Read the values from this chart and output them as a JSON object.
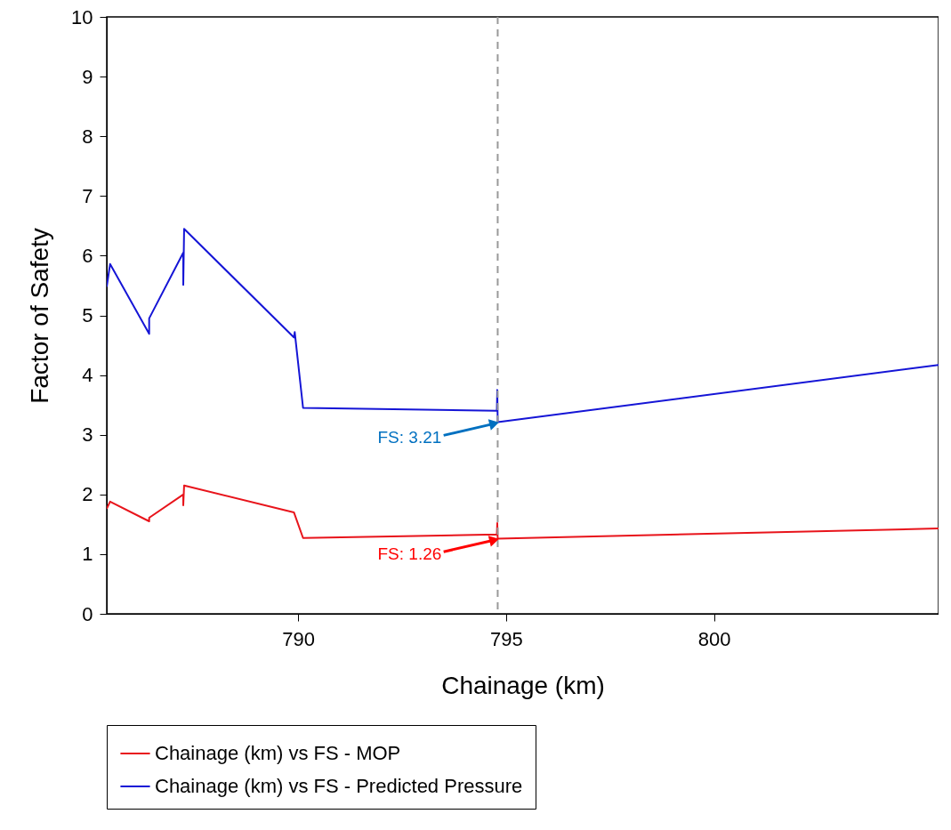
{
  "chart_data": {
    "type": "line",
    "xlabel": "Chainage (km)",
    "ylabel": "Factor of Safety",
    "xlim": [
      785.4,
      805.4
    ],
    "ylim": [
      0,
      10
    ],
    "xticks": [
      790,
      795,
      800
    ],
    "yticks": [
      0,
      1,
      2,
      3,
      4,
      5,
      6,
      7,
      8,
      9,
      10
    ],
    "grid": false,
    "legend": "bottom",
    "marker": "none",
    "line_style": "solid",
    "series": [
      {
        "name": "Chainage (km) vs FS - MOP",
        "color": "#e8141b",
        "x": [
          785.4,
          785.48,
          786.42,
          786.42,
          787.24,
          787.24,
          787.26,
          789.9,
          790.12,
          794.78,
          794.79,
          794.8,
          805.4
        ],
        "values": [
          1.76,
          1.88,
          1.55,
          1.61,
          2.0,
          1.82,
          2.15,
          1.7,
          1.27,
          1.33,
          1.52,
          1.26,
          1.43
        ]
      },
      {
        "name": "Chainage (km) vs FS - Predicted Pressure",
        "color": "#1515d6",
        "x": [
          785.4,
          785.48,
          786.42,
          786.42,
          787.24,
          787.24,
          787.26,
          789.9,
          789.92,
          790.12,
          794.78,
          794.79,
          794.8,
          805.4
        ],
        "values": [
          5.48,
          5.86,
          4.69,
          4.95,
          6.05,
          5.51,
          6.45,
          4.63,
          4.72,
          3.45,
          3.4,
          3.75,
          3.21,
          4.17
        ]
      }
    ],
    "ref_lines": [
      {
        "axis": "x",
        "value": 794.8,
        "color": "#999999",
        "line_style": "dashed"
      }
    ],
    "annotations": [
      {
        "text": "FS: 3.21",
        "x": 794.8,
        "y": 3.21
      },
      {
        "text": "FS: 1.26",
        "x": 794.8,
        "y": 1.26
      }
    ]
  }
}
